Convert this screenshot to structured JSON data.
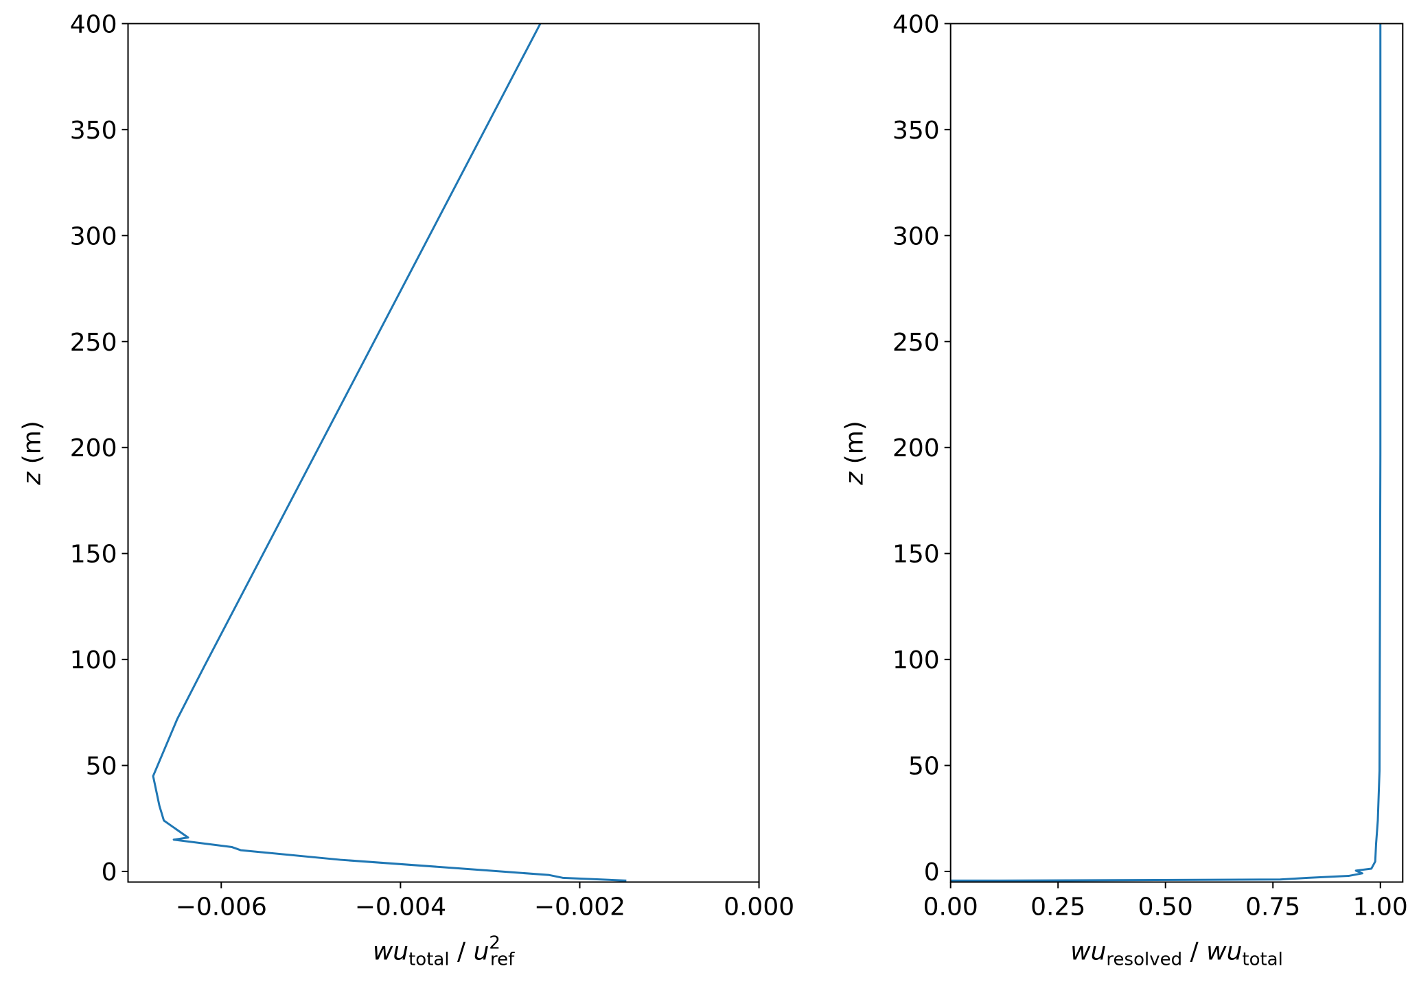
{
  "chart_data": [
    {
      "type": "line",
      "xlabel": {
        "base": "wu",
        "sub": "total",
        "sep": " / ",
        "base2": "u",
        "sub2": "ref",
        "sup2": "2"
      },
      "ylabel": {
        "var": "z",
        "unit": " (m)"
      },
      "x": [
        -0.00244,
        -0.00619,
        -0.00649,
        -0.00676,
        -0.00669,
        -0.00664,
        -0.00637,
        -0.00653,
        -0.00588,
        -0.00578,
        -0.00467,
        -0.003,
        -0.00234,
        -0.00219,
        -0.00148
      ],
      "series": [
        {
          "color": "#1f77b4",
          "values": [
            400,
            96.7,
            72,
            45,
            31,
            24,
            16,
            15,
            11.5,
            10,
            5.5,
            0.4,
            -1.7,
            -3,
            -4.3
          ]
        }
      ],
      "xlim": [
        -0.00704,
        0
      ],
      "xticks": [
        {
          "value": -0.006,
          "label": "−0.006"
        },
        {
          "value": -0.004,
          "label": "−0.004"
        },
        {
          "value": -0.002,
          "label": "−0.002"
        },
        {
          "value": 0,
          "label": "0.000"
        }
      ],
      "ylim": [
        -5,
        400
      ],
      "yticks": [
        0,
        50,
        100,
        150,
        200,
        250,
        300,
        350,
        400
      ]
    },
    {
      "type": "line",
      "xlabel": {
        "base": "wu",
        "sub": "resolved",
        "sep": " / ",
        "base2": "wu",
        "sub2": "total"
      },
      "ylabel": {
        "var": "z",
        "unit": " (m)"
      },
      "x": [
        1.0,
        1.0,
        0.998,
        0.994,
        0.99,
        0.988,
        0.979,
        0.943,
        0.958,
        0.926,
        0.831,
        0.767,
        0.112,
        0
      ],
      "series": [
        {
          "color": "#1f77b4",
          "values": [
            400,
            197,
            47.5,
            24,
            13,
            4.7,
            1.3,
            0.4,
            -0.9,
            -2.1,
            -3,
            -3.8,
            -4.3,
            -4.3
          ]
        }
      ],
      "xlim": [
        0,
        1.052
      ],
      "xticks": [
        {
          "value": 0,
          "label": "0.00"
        },
        {
          "value": 0.25,
          "label": "0.25"
        },
        {
          "value": 0.5,
          "label": "0.50"
        },
        {
          "value": 0.75,
          "label": "0.75"
        },
        {
          "value": 1,
          "label": "1.00"
        }
      ],
      "ylim": [
        -5,
        400
      ],
      "yticks": [
        0,
        50,
        100,
        150,
        200,
        250,
        300,
        350,
        400
      ]
    }
  ]
}
